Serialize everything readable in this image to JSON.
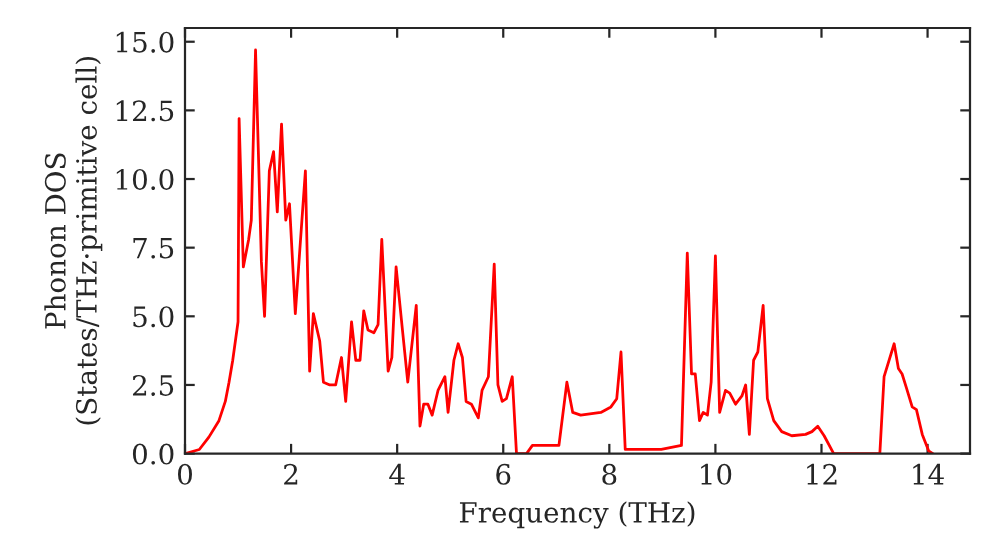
{
  "chart_data": {
    "type": "line",
    "xlabel": "Frequency (THz)",
    "ylabel": "Phonon DOS\n(States/THz·primitive cell)",
    "x": [
      0,
      0.27,
      0.45,
      0.64,
      0.76,
      0.83,
      0.9,
      1.0,
      1.02,
      1.1,
      1.2,
      1.25,
      1.33,
      1.44,
      1.5,
      1.59,
      1.67,
      1.74,
      1.82,
      1.9,
      1.97,
      2.08,
      2.27,
      2.35,
      2.42,
      2.54,
      2.61,
      2.73,
      2.84,
      2.95,
      3.03,
      3.14,
      3.22,
      3.3,
      3.37,
      3.45,
      3.56,
      3.64,
      3.71,
      3.83,
      3.9,
      3.98,
      4.1,
      4.2,
      4.36,
      4.43,
      4.5,
      4.58,
      4.66,
      4.77,
      4.9,
      4.96,
      5.07,
      5.15,
      5.23,
      5.3,
      5.4,
      5.53,
      5.6,
      5.72,
      5.83,
      5.9,
      5.98,
      6.06,
      6.17,
      6.25,
      6.44,
      6.55,
      7.05,
      7.2,
      7.31,
      7.46,
      7.84,
      8.03,
      8.14,
      8.22,
      8.3,
      8.98,
      9.36,
      9.47,
      9.55,
      9.62,
      9.7,
      9.77,
      9.85,
      9.92,
      10.0,
      10.08,
      10.19,
      10.27,
      10.38,
      10.5,
      10.57,
      10.64,
      10.72,
      10.8,
      10.9,
      10.98,
      11.1,
      11.25,
      11.44,
      11.7,
      11.82,
      11.93,
      12.05,
      12.23,
      13.1,
      13.18,
      13.37,
      13.45,
      13.52,
      13.6,
      13.71,
      13.79,
      13.9,
      14.02,
      14.1
    ],
    "series": [
      {
        "color": "#ff0000",
        "values": [
          0,
          0.15,
          0.6,
          1.2,
          1.9,
          2.6,
          3.4,
          4.8,
          12.2,
          6.8,
          7.8,
          8.5,
          14.7,
          7.0,
          5.0,
          10.3,
          11.0,
          8.8,
          12.0,
          8.5,
          9.1,
          5.1,
          10.3,
          3.0,
          5.1,
          4.1,
          2.6,
          2.5,
          2.5,
          3.5,
          1.9,
          4.8,
          3.4,
          3.4,
          5.2,
          4.5,
          4.4,
          4.7,
          7.8,
          3.0,
          3.5,
          6.8,
          4.5,
          2.6,
          5.4,
          1.0,
          1.8,
          1.8,
          1.4,
          2.3,
          2.8,
          1.5,
          3.4,
          4.0,
          3.5,
          1.9,
          1.8,
          1.3,
          2.3,
          2.8,
          6.9,
          2.5,
          1.9,
          2.0,
          2.8,
          0,
          0,
          0.3,
          0.3,
          2.6,
          1.5,
          1.4,
          1.5,
          1.7,
          2.0,
          3.7,
          0.15,
          0.15,
          0.3,
          7.3,
          2.9,
          2.9,
          1.2,
          1.5,
          1.4,
          2.6,
          7.2,
          1.5,
          2.3,
          2.2,
          1.8,
          2.1,
          2.5,
          0.7,
          3.4,
          3.7,
          5.4,
          2.0,
          1.2,
          0.8,
          0.65,
          0.7,
          0.8,
          1.0,
          0.65,
          0,
          0,
          2.8,
          4.0,
          3.1,
          2.9,
          2.4,
          1.7,
          1.6,
          0.7,
          0.1,
          0
        ]
      }
    ],
    "xlim": [
      0,
      14.8
    ],
    "ylim": [
      0,
      15.5
    ],
    "xticks": [
      0,
      2,
      4,
      6,
      8,
      10,
      12,
      14
    ],
    "yticks": [
      {
        "value": 0,
        "label": "0.0"
      },
      {
        "value": 2.5,
        "label": "2.5"
      },
      {
        "value": 5,
        "label": "5.0"
      },
      {
        "value": 7.5,
        "label": "7.5"
      },
      {
        "value": 10,
        "label": "10.0"
      },
      {
        "value": 12.5,
        "label": "12.5"
      },
      {
        "value": 15,
        "label": "15.0"
      }
    ],
    "grid": false,
    "legend": false
  }
}
